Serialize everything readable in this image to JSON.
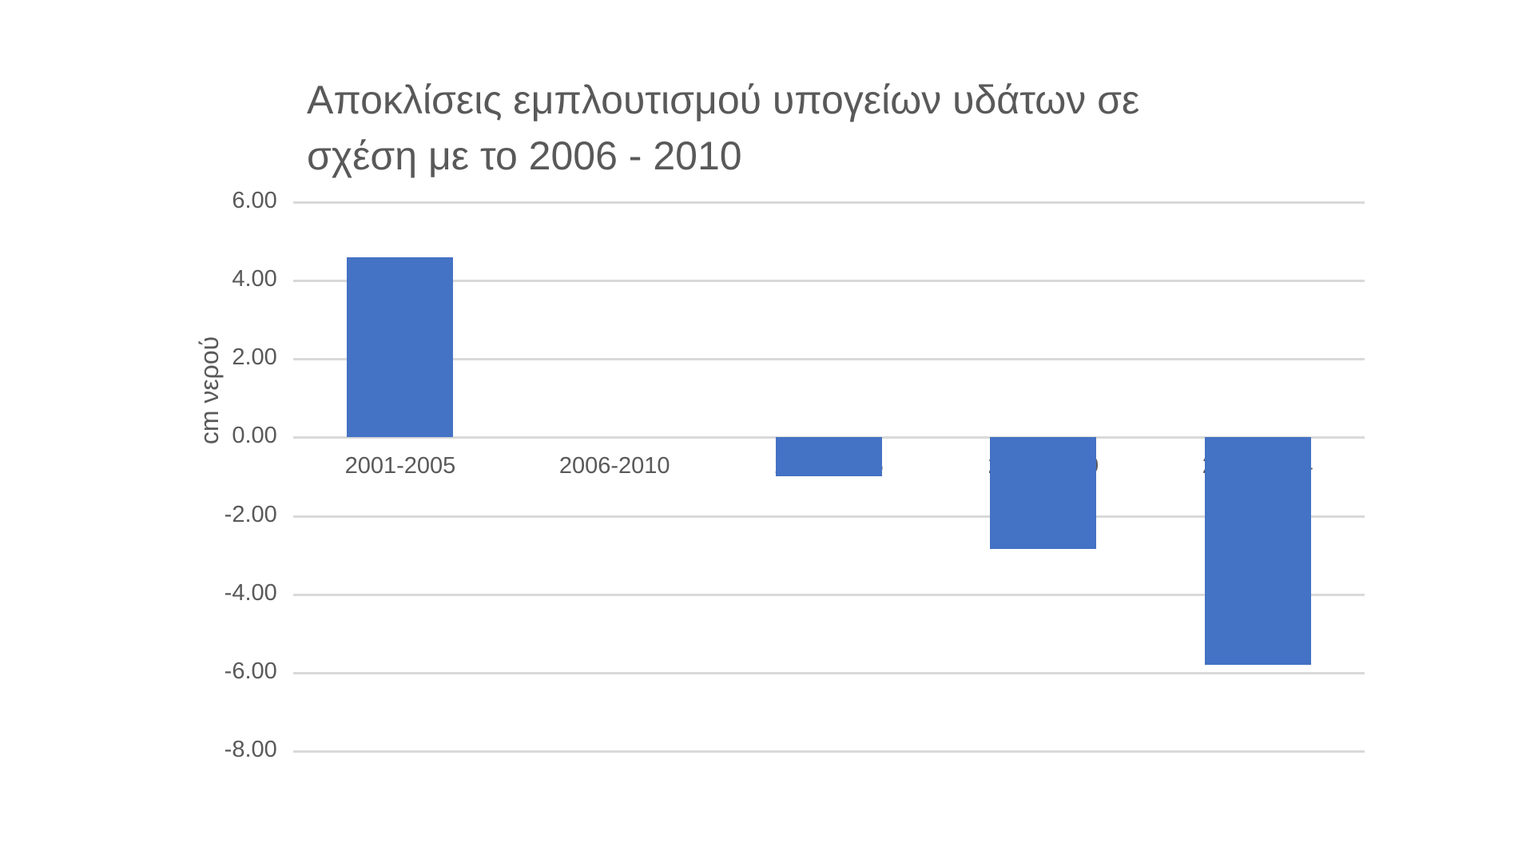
{
  "chart_data": {
    "type": "bar",
    "title": "Αποκλίσεις εμπλουτισμού υπογείων υδάτων σε σχέση με το 2006 - 2010",
    "title_lines": [
      "Αποκλίσεις εμπλουτισμού υπογείων υδάτων σε",
      "σχέση με το 2006 - 2010"
    ],
    "xlabel": "",
    "ylabel": "cm νερού",
    "categories": [
      "2001-2005",
      "2006-2010",
      "2011-2015",
      "2016-2020",
      "2021-2024"
    ],
    "values": [
      4.6,
      0.0,
      -1.0,
      -2.85,
      -5.8
    ],
    "ylim": [
      -8,
      6
    ],
    "yticks": [
      "6.00",
      "4.00",
      "2.00",
      "0.00",
      "-2.00",
      "-4.00",
      "-6.00",
      "-8.00"
    ],
    "ytick_values": [
      6,
      4,
      2,
      0,
      -2,
      -4,
      -6,
      -8
    ],
    "grid": true,
    "legend": "none",
    "bar_color": "#4472c4",
    "grid_color": "#d9d9d9"
  }
}
